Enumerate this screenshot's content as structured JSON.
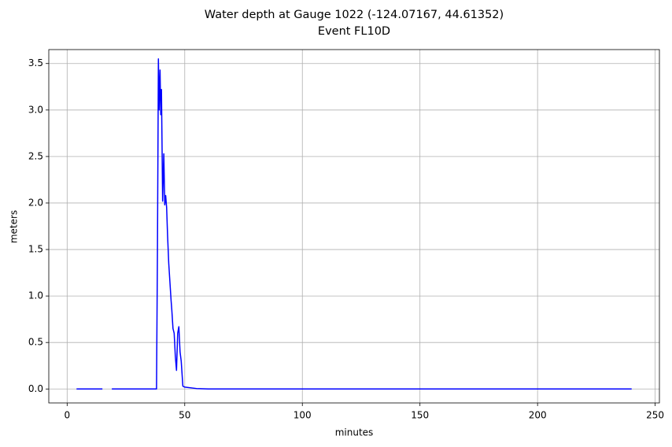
{
  "chart_data": {
    "type": "line",
    "title": "Water depth at Gauge 1022 (-124.07167, 44.61352)",
    "subtitle": "Event FL10D",
    "x_label": "minutes",
    "y_label": "meters",
    "x": [
      4,
      6,
      8,
      10,
      12,
      15,
      17,
      19,
      25,
      30,
      35,
      38,
      38.4,
      38.8,
      39.1,
      39.5,
      39.8,
      40.1,
      40.6,
      41.1,
      41.5,
      41.9,
      42.3,
      42.7,
      43.2,
      43.7,
      44.2,
      44.5,
      45,
      45.5,
      46,
      46.5,
      47,
      47.5,
      48,
      48.5,
      49.2,
      50,
      55,
      60,
      100,
      150,
      200,
      240
    ],
    "series": [
      {
        "name": "depth",
        "color": "#0000ff",
        "values": [
          0,
          0,
          0,
          0,
          0,
          0,
          null,
          0,
          0,
          0,
          0,
          0,
          1.5,
          3.55,
          3.0,
          3.43,
          2.95,
          3.22,
          2.02,
          2.53,
          1.98,
          2.08,
          1.95,
          1.65,
          1.35,
          1.15,
          0.95,
          0.85,
          0.65,
          0.6,
          0.35,
          0.2,
          0.6,
          0.67,
          0.4,
          0.3,
          0.03,
          0.02,
          0.005,
          0,
          0,
          0,
          0,
          0
        ]
      }
    ],
    "xlim": [
      -7.8,
      251.8
    ],
    "xticks": [
      0,
      50,
      100,
      150,
      200,
      250
    ],
    "ylim": [
      -0.15,
      3.65
    ],
    "yticks": [
      {
        "value": 0,
        "label": "0.0"
      },
      {
        "value": 0.5,
        "label": "0.5"
      },
      {
        "value": 1,
        "label": "1.0"
      },
      {
        "value": 1.5,
        "label": "1.5"
      },
      {
        "value": 2,
        "label": "2.0"
      },
      {
        "value": 2.5,
        "label": "2.5"
      },
      {
        "value": 3,
        "label": "3.0"
      },
      {
        "value": 3.5,
        "label": "3.5"
      }
    ],
    "grid": true
  }
}
